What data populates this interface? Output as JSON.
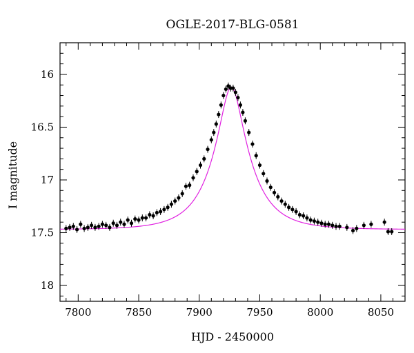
{
  "chart_data": {
    "type": "scatter",
    "title": "OGLE-2017-BLG-0581",
    "xlabel": "HJD - 2450000",
    "ylabel": "I magnitude",
    "xlim": [
      7785,
      8070
    ],
    "ylim": [
      18.15,
      15.7
    ],
    "y_inverted": true,
    "grid": false,
    "x_ticks": [
      7800,
      7850,
      7900,
      7950,
      8000,
      8050
    ],
    "x_tick_labels": [
      "7800",
      "7850",
      "7900",
      "7950",
      "8000",
      "8050"
    ],
    "y_ticks": [
      16,
      16.5,
      17,
      17.5,
      18
    ],
    "y_tick_labels": [
      "16",
      "16.5",
      "17",
      "17.5",
      "18"
    ],
    "colors": {
      "data": "#000000",
      "model": "#e020e0"
    },
    "model": {
      "kind": "microlensing_fit",
      "t0": 7926.5,
      "peak_mag": 16.12,
      "baseline_mag": 17.47
    },
    "observations": [
      {
        "x": 7790,
        "y": 17.46
      },
      {
        "x": 7793,
        "y": 17.45
      },
      {
        "x": 7796,
        "y": 17.44
      },
      {
        "x": 7799,
        "y": 17.47
      },
      {
        "x": 7802,
        "y": 17.42
      },
      {
        "x": 7805,
        "y": 17.46
      },
      {
        "x": 7808,
        "y": 17.45
      },
      {
        "x": 7811,
        "y": 17.43
      },
      {
        "x": 7814,
        "y": 17.45
      },
      {
        "x": 7817,
        "y": 17.44
      },
      {
        "x": 7820,
        "y": 17.42
      },
      {
        "x": 7823,
        "y": 17.43
      },
      {
        "x": 7826,
        "y": 17.45
      },
      {
        "x": 7829,
        "y": 17.41
      },
      {
        "x": 7832,
        "y": 17.43
      },
      {
        "x": 7835,
        "y": 17.4
      },
      {
        "x": 7838,
        "y": 17.42
      },
      {
        "x": 7841,
        "y": 17.38
      },
      {
        "x": 7844,
        "y": 17.41
      },
      {
        "x": 7847,
        "y": 17.37
      },
      {
        "x": 7850,
        "y": 17.38
      },
      {
        "x": 7853,
        "y": 17.36
      },
      {
        "x": 7856,
        "y": 17.36
      },
      {
        "x": 7859,
        "y": 17.33
      },
      {
        "x": 7862,
        "y": 17.34
      },
      {
        "x": 7865,
        "y": 17.31
      },
      {
        "x": 7868,
        "y": 17.3
      },
      {
        "x": 7871,
        "y": 17.28
      },
      {
        "x": 7874,
        "y": 17.26
      },
      {
        "x": 7877,
        "y": 17.23
      },
      {
        "x": 7880,
        "y": 17.2
      },
      {
        "x": 7883,
        "y": 17.17
      },
      {
        "x": 7886,
        "y": 17.13
      },
      {
        "x": 7889,
        "y": 17.06
      },
      {
        "x": 7892,
        "y": 17.05
      },
      {
        "x": 7895,
        "y": 16.98
      },
      {
        "x": 7898,
        "y": 16.92
      },
      {
        "x": 7901,
        "y": 16.86
      },
      {
        "x": 7904,
        "y": 16.8
      },
      {
        "x": 7907,
        "y": 16.71
      },
      {
        "x": 7910,
        "y": 16.62
      },
      {
        "x": 7912,
        "y": 16.55
      },
      {
        "x": 7914,
        "y": 16.47
      },
      {
        "x": 7916,
        "y": 16.38
      },
      {
        "x": 7918,
        "y": 16.29
      },
      {
        "x": 7920,
        "y": 16.2
      },
      {
        "x": 7922,
        "y": 16.14
      },
      {
        "x": 7924,
        "y": 16.11
      },
      {
        "x": 7926,
        "y": 16.13
      },
      {
        "x": 7928,
        "y": 16.13
      },
      {
        "x": 7930,
        "y": 16.17
      },
      {
        "x": 7932,
        "y": 16.22
      },
      {
        "x": 7934,
        "y": 16.29
      },
      {
        "x": 7936,
        "y": 16.36
      },
      {
        "x": 7938,
        "y": 16.44
      },
      {
        "x": 7941,
        "y": 16.55
      },
      {
        "x": 7944,
        "y": 16.66
      },
      {
        "x": 7947,
        "y": 16.77
      },
      {
        "x": 7950,
        "y": 16.86
      },
      {
        "x": 7953,
        "y": 16.94
      },
      {
        "x": 7956,
        "y": 17.01
      },
      {
        "x": 7959,
        "y": 17.07
      },
      {
        "x": 7962,
        "y": 17.12
      },
      {
        "x": 7965,
        "y": 17.16
      },
      {
        "x": 7968,
        "y": 17.2
      },
      {
        "x": 7971,
        "y": 17.23
      },
      {
        "x": 7974,
        "y": 17.26
      },
      {
        "x": 7977,
        "y": 17.28
      },
      {
        "x": 7980,
        "y": 17.3
      },
      {
        "x": 7983,
        "y": 17.33
      },
      {
        "x": 7986,
        "y": 17.34
      },
      {
        "x": 7989,
        "y": 17.36
      },
      {
        "x": 7992,
        "y": 17.38
      },
      {
        "x": 7995,
        "y": 17.39
      },
      {
        "x": 7998,
        "y": 17.4
      },
      {
        "x": 8001,
        "y": 17.41
      },
      {
        "x": 8004,
        "y": 17.42
      },
      {
        "x": 8007,
        "y": 17.42
      },
      {
        "x": 8010,
        "y": 17.43
      },
      {
        "x": 8013,
        "y": 17.44
      },
      {
        "x": 8016,
        "y": 17.44
      },
      {
        "x": 8022,
        "y": 17.45
      },
      {
        "x": 8027,
        "y": 17.48
      },
      {
        "x": 8030,
        "y": 17.46
      },
      {
        "x": 8036,
        "y": 17.43
      },
      {
        "x": 8042,
        "y": 17.42
      },
      {
        "x": 8053,
        "y": 17.4
      },
      {
        "x": 8056,
        "y": 17.49
      },
      {
        "x": 8059,
        "y": 17.49
      }
    ]
  }
}
